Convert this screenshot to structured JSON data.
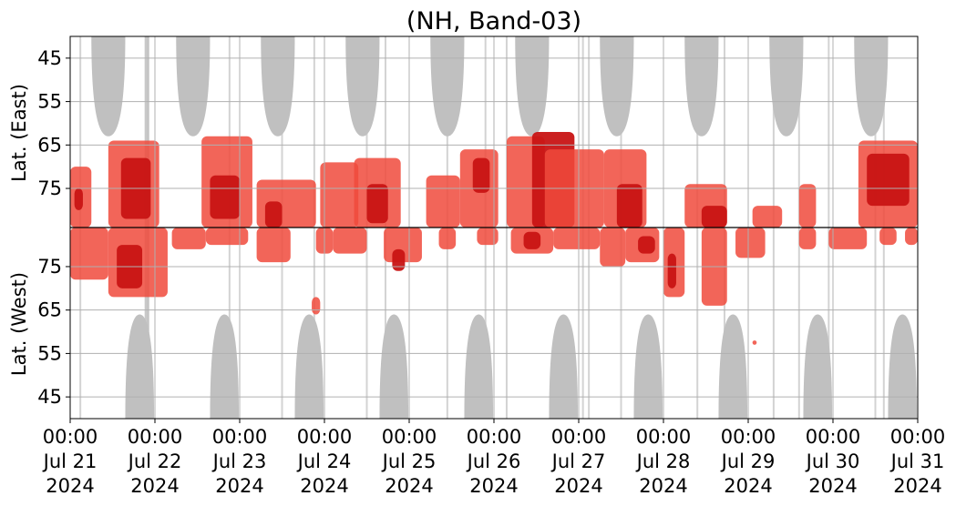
{
  "chart_data": {
    "type": "heatmap",
    "title": "(NH, Band-03)",
    "y_axis": {
      "upper_label": "Lat. (East)",
      "lower_label": "Lat. (West)",
      "upper_ticks": [
        "45",
        "55",
        "65",
        "75"
      ],
      "lower_ticks": [
        "75",
        "65",
        "55",
        "45"
      ],
      "upper_tick_values": [
        45,
        55,
        65,
        75
      ],
      "lower_tick_values": [
        75,
        65,
        55,
        45
      ],
      "upper_range": [
        40,
        84
      ],
      "lower_range": [
        84,
        40
      ],
      "divider_lat": 84
    },
    "x_axis": {
      "range_days": [
        0,
        10
      ],
      "ticks": [
        {
          "day": 0,
          "time": "00:00",
          "date": "Jul 21",
          "year": "2024"
        },
        {
          "day": 1,
          "time": "00:00",
          "date": "Jul 22",
          "year": "2024"
        },
        {
          "day": 2,
          "time": "00:00",
          "date": "Jul 23",
          "year": "2024"
        },
        {
          "day": 3,
          "time": "00:00",
          "date": "Jul 24",
          "year": "2024"
        },
        {
          "day": 4,
          "time": "00:00",
          "date": "Jul 25",
          "year": "2024"
        },
        {
          "day": 5,
          "time": "00:00",
          "date": "Jul 26",
          "year": "2024"
        },
        {
          "day": 6,
          "time": "00:00",
          "date": "Jul 27",
          "year": "2024"
        },
        {
          "day": 7,
          "time": "00:00",
          "date": "Jul 28",
          "year": "2024"
        },
        {
          "day": 8,
          "time": "00:00",
          "date": "Jul 29",
          "year": "2024"
        },
        {
          "day": 9,
          "time": "00:00",
          "date": "Jul 30",
          "year": "2024"
        },
        {
          "day": 10,
          "time": "00:00",
          "date": "Jul 31",
          "year": "2024"
        }
      ]
    },
    "grid": true,
    "colors": {
      "no_data": "#c0c0c0",
      "level_low": "#f04a3c",
      "level_high": "#c81414",
      "grid": "#b0b0b0",
      "divider": "#000000"
    },
    "gray_lobes_east": [
      {
        "day": 0.45,
        "halfwidth": 0.2,
        "tip_lat": 63
      },
      {
        "day": 1.45,
        "halfwidth": 0.2,
        "tip_lat": 63
      },
      {
        "day": 2.45,
        "halfwidth": 0.2,
        "tip_lat": 63
      },
      {
        "day": 3.45,
        "halfwidth": 0.2,
        "tip_lat": 63
      },
      {
        "day": 4.45,
        "halfwidth": 0.2,
        "tip_lat": 63
      },
      {
        "day": 5.45,
        "halfwidth": 0.2,
        "tip_lat": 63
      },
      {
        "day": 6.45,
        "halfwidth": 0.2,
        "tip_lat": 63
      },
      {
        "day": 7.45,
        "halfwidth": 0.2,
        "tip_lat": 63
      },
      {
        "day": 8.45,
        "halfwidth": 0.2,
        "tip_lat": 63
      },
      {
        "day": 9.45,
        "halfwidth": 0.2,
        "tip_lat": 63
      }
    ],
    "gray_lobes_west": [
      {
        "day": 0.82,
        "halfwidth": 0.17,
        "tip_lat": 64
      },
      {
        "day": 1.82,
        "halfwidth": 0.17,
        "tip_lat": 64
      },
      {
        "day": 2.82,
        "halfwidth": 0.17,
        "tip_lat": 64
      },
      {
        "day": 3.82,
        "halfwidth": 0.17,
        "tip_lat": 64
      },
      {
        "day": 4.82,
        "halfwidth": 0.17,
        "tip_lat": 64
      },
      {
        "day": 5.82,
        "halfwidth": 0.17,
        "tip_lat": 64
      },
      {
        "day": 6.82,
        "halfwidth": 0.17,
        "tip_lat": 64
      },
      {
        "day": 7.82,
        "halfwidth": 0.17,
        "tip_lat": 64
      },
      {
        "day": 8.82,
        "halfwidth": 0.17,
        "tip_lat": 64
      },
      {
        "day": 9.82,
        "halfwidth": 0.17,
        "tip_lat": 64
      }
    ],
    "gray_stripes_days": [
      0.12,
      0.92,
      1.88,
      2.5,
      2.88,
      3.5,
      3.72,
      4.45,
      4.9,
      5.15,
      6.05,
      6.12,
      6.5,
      7.4,
      7.72,
      8.3,
      8.6,
      8.95,
      9.5,
      9.6
    ],
    "activity_east": [
      {
        "day0": 0.0,
        "day1": 0.25,
        "lat_top": 70,
        "lat_bot": 84,
        "level": "low"
      },
      {
        "day0": 0.05,
        "day1": 0.15,
        "lat_top": 75,
        "lat_bot": 80,
        "level": "high"
      },
      {
        "day0": 0.45,
        "day1": 1.05,
        "lat_top": 64,
        "lat_bot": 84,
        "level": "low"
      },
      {
        "day0": 0.6,
        "day1": 0.95,
        "lat_top": 68,
        "lat_bot": 82,
        "level": "high"
      },
      {
        "day0": 1.55,
        "day1": 2.15,
        "lat_top": 63,
        "lat_bot": 84,
        "level": "low"
      },
      {
        "day0": 1.65,
        "day1": 2.0,
        "lat_top": 72,
        "lat_bot": 82,
        "level": "high"
      },
      {
        "day0": 2.2,
        "day1": 2.9,
        "lat_top": 73,
        "lat_bot": 84,
        "level": "low"
      },
      {
        "day0": 2.3,
        "day1": 2.5,
        "lat_top": 78,
        "lat_bot": 84,
        "level": "high"
      },
      {
        "day0": 2.95,
        "day1": 3.4,
        "lat_top": 69,
        "lat_bot": 84,
        "level": "low"
      },
      {
        "day0": 3.35,
        "day1": 3.9,
        "lat_top": 68,
        "lat_bot": 84,
        "level": "low"
      },
      {
        "day0": 3.5,
        "day1": 3.75,
        "lat_top": 74,
        "lat_bot": 83,
        "level": "high"
      },
      {
        "day0": 4.2,
        "day1": 4.6,
        "lat_top": 72,
        "lat_bot": 84,
        "level": "low"
      },
      {
        "day0": 4.6,
        "day1": 5.05,
        "lat_top": 66,
        "lat_bot": 84,
        "level": "low"
      },
      {
        "day0": 4.75,
        "day1": 4.95,
        "lat_top": 68,
        "lat_bot": 76,
        "level": "high"
      },
      {
        "day0": 5.15,
        "day1": 5.6,
        "lat_top": 63,
        "lat_bot": 84,
        "level": "low"
      },
      {
        "day0": 5.45,
        "day1": 5.95,
        "lat_top": 62,
        "lat_bot": 84,
        "level": "high"
      },
      {
        "day0": 5.6,
        "day1": 6.3,
        "lat_top": 66,
        "lat_bot": 84,
        "level": "low"
      },
      {
        "day0": 6.3,
        "day1": 6.8,
        "lat_top": 66,
        "lat_bot": 84,
        "level": "low"
      },
      {
        "day0": 6.45,
        "day1": 6.75,
        "lat_top": 74,
        "lat_bot": 84,
        "level": "high"
      },
      {
        "day0": 7.25,
        "day1": 7.75,
        "lat_top": 74,
        "lat_bot": 84,
        "level": "low"
      },
      {
        "day0": 7.45,
        "day1": 7.75,
        "lat_top": 79,
        "lat_bot": 84,
        "level": "high"
      },
      {
        "day0": 8.05,
        "day1": 8.4,
        "lat_top": 79,
        "lat_bot": 84,
        "level": "low"
      },
      {
        "day0": 8.6,
        "day1": 8.8,
        "lat_top": 74,
        "lat_bot": 84,
        "level": "low"
      },
      {
        "day0": 9.3,
        "day1": 10.0,
        "lat_top": 64,
        "lat_bot": 84,
        "level": "low"
      },
      {
        "day0": 9.4,
        "day1": 9.9,
        "lat_top": 67,
        "lat_bot": 79,
        "level": "high"
      }
    ],
    "activity_west": [
      {
        "day0": 0.0,
        "day1": 0.45,
        "lat_top": 84,
        "lat_bot": 72,
        "level": "low"
      },
      {
        "day0": 0.45,
        "day1": 1.15,
        "lat_top": 84,
        "lat_bot": 68,
        "level": "low"
      },
      {
        "day0": 0.55,
        "day1": 0.85,
        "lat_top": 80,
        "lat_bot": 70,
        "level": "high"
      },
      {
        "day0": 1.2,
        "day1": 1.6,
        "lat_top": 84,
        "lat_bot": 79,
        "level": "low"
      },
      {
        "day0": 1.6,
        "day1": 2.1,
        "lat_top": 84,
        "lat_bot": 80,
        "level": "low"
      },
      {
        "day0": 2.2,
        "day1": 2.6,
        "lat_top": 84,
        "lat_bot": 76,
        "level": "low"
      },
      {
        "day0": 2.9,
        "day1": 3.1,
        "lat_top": 84,
        "lat_bot": 78,
        "level": "low"
      },
      {
        "day0": 3.1,
        "day1": 3.5,
        "lat_top": 84,
        "lat_bot": 78,
        "level": "low"
      },
      {
        "day0": 2.85,
        "day1": 2.95,
        "lat_top": 68,
        "lat_bot": 64,
        "level": "low"
      },
      {
        "day0": 3.7,
        "day1": 4.15,
        "lat_top": 84,
        "lat_bot": 76,
        "level": "low"
      },
      {
        "day0": 3.8,
        "day1": 3.95,
        "lat_top": 79,
        "lat_bot": 74,
        "level": "high"
      },
      {
        "day0": 4.35,
        "day1": 4.55,
        "lat_top": 84,
        "lat_bot": 79,
        "level": "low"
      },
      {
        "day0": 4.8,
        "day1": 5.05,
        "lat_top": 84,
        "lat_bot": 80,
        "level": "low"
      },
      {
        "day0": 5.2,
        "day1": 5.7,
        "lat_top": 84,
        "lat_bot": 78,
        "level": "low"
      },
      {
        "day0": 5.35,
        "day1": 5.55,
        "lat_top": 83,
        "lat_bot": 79,
        "level": "high"
      },
      {
        "day0": 5.7,
        "day1": 6.25,
        "lat_top": 84,
        "lat_bot": 79,
        "level": "low"
      },
      {
        "day0": 6.25,
        "day1": 6.55,
        "lat_top": 84,
        "lat_bot": 75,
        "level": "low"
      },
      {
        "day0": 6.55,
        "day1": 6.95,
        "lat_top": 84,
        "lat_bot": 76,
        "level": "low"
      },
      {
        "day0": 6.7,
        "day1": 6.9,
        "lat_top": 82,
        "lat_bot": 78,
        "level": "high"
      },
      {
        "day0": 7.0,
        "day1": 7.25,
        "lat_top": 84,
        "lat_bot": 68,
        "level": "low"
      },
      {
        "day0": 7.05,
        "day1": 7.15,
        "lat_top": 78,
        "lat_bot": 70,
        "level": "high"
      },
      {
        "day0": 7.45,
        "day1": 7.75,
        "lat_top": 84,
        "lat_bot": 66,
        "level": "low"
      },
      {
        "day0": 7.85,
        "day1": 8.2,
        "lat_top": 84,
        "lat_bot": 77,
        "level": "low"
      },
      {
        "day0": 8.05,
        "day1": 8.1,
        "lat_top": 58,
        "lat_bot": 57,
        "level": "low"
      },
      {
        "day0": 8.6,
        "day1": 8.8,
        "lat_top": 84,
        "lat_bot": 79,
        "level": "low"
      },
      {
        "day0": 8.95,
        "day1": 9.4,
        "lat_top": 84,
        "lat_bot": 79,
        "level": "low"
      },
      {
        "day0": 9.55,
        "day1": 9.75,
        "lat_top": 84,
        "lat_bot": 80,
        "level": "low"
      },
      {
        "day0": 9.85,
        "day1": 10.0,
        "lat_top": 84,
        "lat_bot": 80,
        "level": "low"
      }
    ]
  }
}
